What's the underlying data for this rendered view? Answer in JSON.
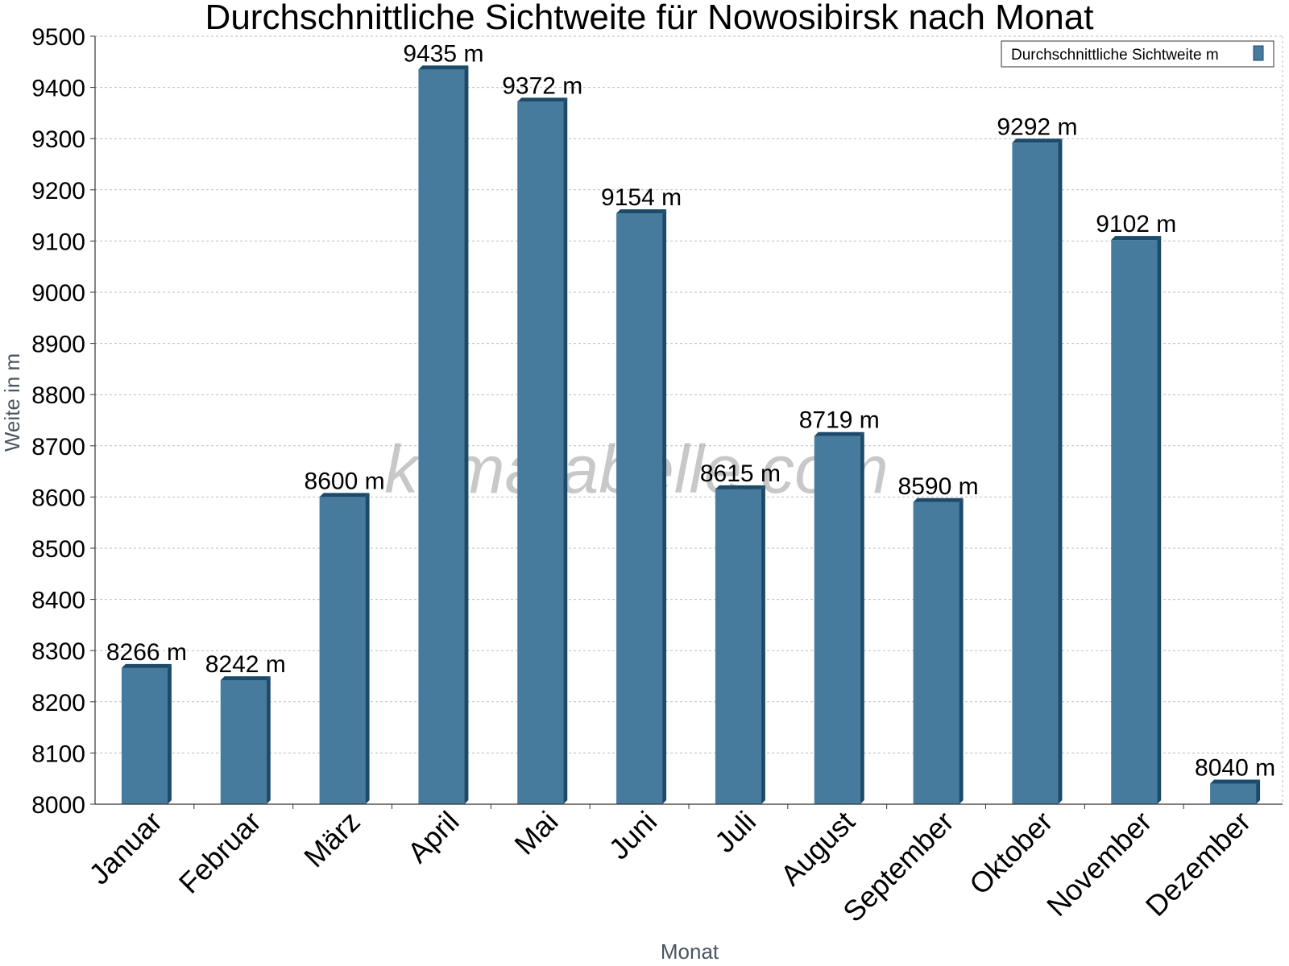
{
  "chart_data": {
    "type": "bar",
    "title": "Durchschnittliche Sichtweite für Nowosibirsk nach Monat",
    "xlabel": "Monat",
    "ylabel": "Weite in m",
    "categories": [
      "Januar",
      "Februar",
      "März",
      "April",
      "Mai",
      "Juni",
      "Juli",
      "August",
      "September",
      "Oktober",
      "November",
      "Dezember"
    ],
    "series": [
      {
        "name": "Durchschnittliche Sichtweite m",
        "values": [
          8266,
          8242,
          8600,
          9435,
          9372,
          9154,
          8615,
          8719,
          8590,
          9292,
          9102,
          8040
        ],
        "labels": [
          "8266 m",
          "8242 m",
          "8600 m",
          "9435 m",
          "9372 m",
          "9154 m",
          "8615 m",
          "8719 m",
          "8590 m",
          "9292 m",
          "9102 m",
          "8040 m"
        ]
      }
    ],
    "ylim": [
      8000,
      9500
    ],
    "yticks": [
      "8000",
      "8100",
      "8200",
      "8300",
      "8400",
      "8500",
      "8600",
      "8700",
      "8800",
      "8900",
      "9000",
      "9100",
      "9200",
      "9300",
      "9400",
      "9500"
    ],
    "grid": true,
    "legend_position": "top-right",
    "bar_color": "#467b9d",
    "bar_edge_color": "#1b4a6b",
    "watermark": "klimatabelle.com"
  }
}
